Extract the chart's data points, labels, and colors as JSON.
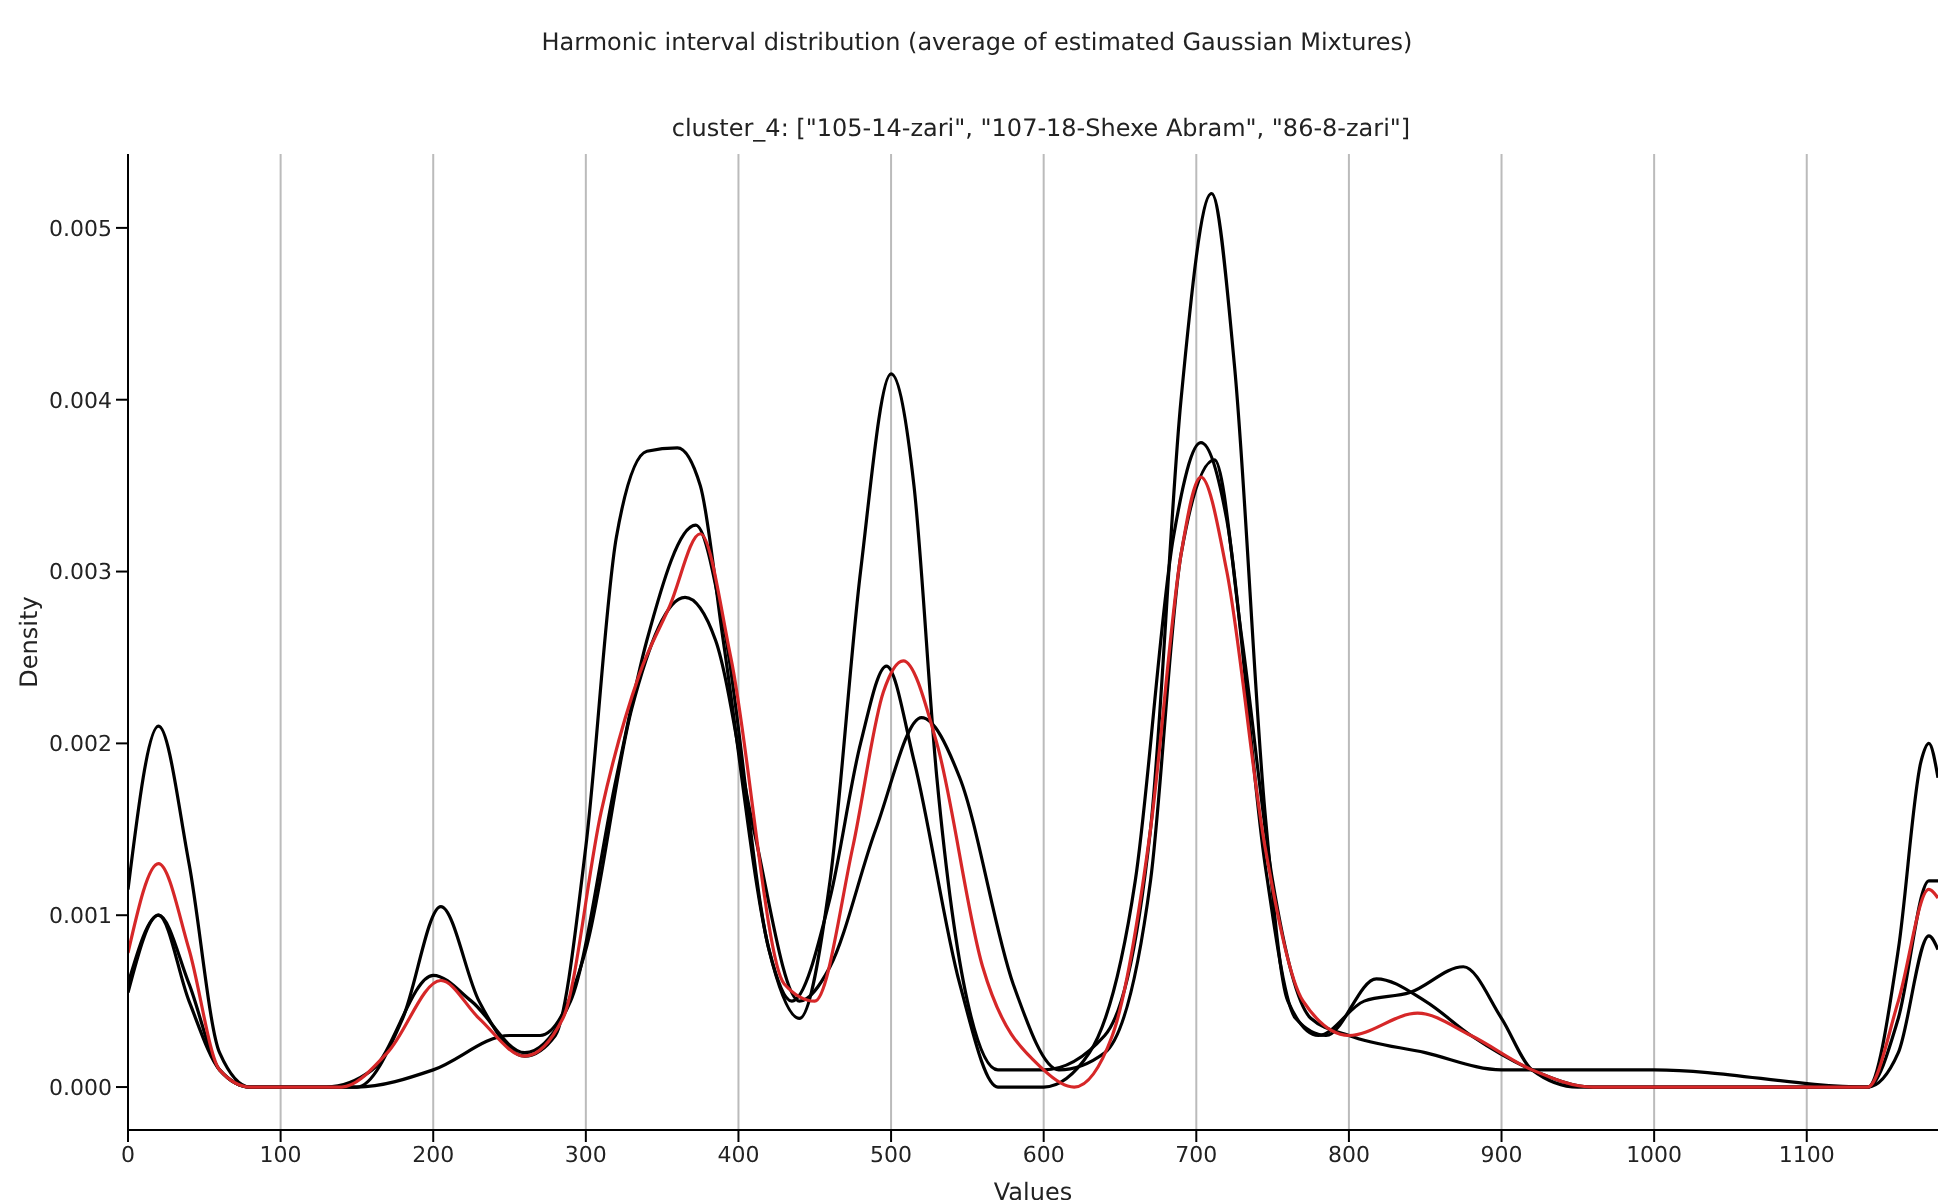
{
  "chart_data": {
    "type": "line",
    "title": "Harmonic interval distribution (average of estimated Gaussian Mixtures)",
    "subtitle": "cluster_4: [\"105-14-zari\", \"107-18-Shexe Abram\", \"86-8-zari\"]",
    "xlabel": "Values",
    "ylabel": "Density",
    "xlim": [
      0,
      1186
    ],
    "xticks": [
      0,
      100,
      200,
      300,
      400,
      500,
      600,
      700,
      800,
      900,
      1000,
      1100
    ],
    "ylim": [
      -0.00025,
      0.00543
    ],
    "yticks": [
      {
        "value": 0,
        "label": "0.000"
      },
      {
        "value": 0.001,
        "label": "0.001"
      },
      {
        "value": 0.002,
        "label": "0.002"
      },
      {
        "value": 0.003,
        "label": "0.003"
      },
      {
        "value": 0.004,
        "label": "0.004"
      },
      {
        "value": 0.005,
        "label": "0.005"
      }
    ],
    "grid": "x",
    "marker": "none",
    "line_style": "solid",
    "series": [
      {
        "color": "#000000",
        "x": [
          0,
          20,
          40,
          60,
          80,
          150,
          180,
          205,
          230,
          260,
          280,
          300,
          320,
          340,
          360,
          375,
          390,
          420,
          440,
          460,
          480,
          500,
          515,
          530,
          550,
          570,
          600,
          640,
          670,
          690,
          710,
          725,
          745,
          760,
          780,
          810,
          840,
          875,
          900,
          920,
          950,
          1000,
          1100,
          1140,
          1160,
          1175,
          1180,
          1186
        ],
        "values": [
          0.00115,
          0.0021,
          0.0013,
          0.0002,
          0.0,
          0.0,
          0.0004,
          0.00105,
          0.0005,
          0.00018,
          0.0003,
          0.0014,
          0.0032,
          0.0037,
          0.00372,
          0.0035,
          0.0026,
          0.0008,
          0.0004,
          0.0012,
          0.003,
          0.00415,
          0.0035,
          0.0018,
          0.0005,
          0.0001,
          0.0001,
          0.0003,
          0.0015,
          0.004,
          0.0052,
          0.0042,
          0.0016,
          0.0005,
          0.0003,
          0.0005,
          0.00055,
          0.0007,
          0.0004,
          0.0001,
          0.0,
          0.0,
          0.0,
          0.0,
          0.0008,
          0.0019,
          0.002,
          0.0018
        ]
      },
      {
        "color": "#000000",
        "x": [
          0,
          20,
          40,
          60,
          80,
          150,
          200,
          250,
          270,
          300,
          330,
          365,
          385,
          410,
          440,
          460,
          490,
          520,
          545,
          580,
          610,
          640,
          670,
          690,
          712,
          730,
          750,
          775,
          800,
          850,
          900,
          1000,
          1140,
          1160,
          1180,
          1186
        ],
        "values": [
          0.00055,
          0.001,
          0.0006,
          0.0001,
          0.0,
          0.0,
          0.0001,
          0.0003,
          0.0003,
          0.0008,
          0.0022,
          0.00285,
          0.0026,
          0.0015,
          0.0005,
          0.0007,
          0.0015,
          0.00215,
          0.0018,
          0.0006,
          0.0001,
          0.0002,
          0.0012,
          0.0031,
          0.00365,
          0.0026,
          0.0012,
          0.0004,
          0.0003,
          0.0002,
          0.0001,
          0.0001,
          0.0,
          0.0002,
          0.00088,
          0.0008
        ]
      },
      {
        "color": "#000000",
        "x": [
          0,
          20,
          40,
          60,
          80,
          130,
          160,
          200,
          225,
          260,
          290,
          320,
          340,
          372,
          390,
          420,
          435,
          460,
          480,
          497,
          515,
          545,
          570,
          600,
          630,
          660,
          685,
          703,
          720,
          745,
          765,
          785,
          818,
          850,
          880,
          920,
          960,
          1140,
          1160,
          1180,
          1186
        ],
        "values": [
          0.0006,
          0.001,
          0.0005,
          0.0001,
          0.0,
          0.0,
          0.0001,
          0.00065,
          0.0005,
          0.0002,
          0.0005,
          0.0018,
          0.0026,
          0.00327,
          0.0027,
          0.0008,
          0.0005,
          0.0011,
          0.002,
          0.00245,
          0.0019,
          0.0006,
          0.0,
          0.0,
          0.0002,
          0.0012,
          0.0032,
          0.00375,
          0.0033,
          0.0013,
          0.0004,
          0.0003,
          0.00063,
          0.0005,
          0.0003,
          0.0001,
          0.0,
          0.0,
          0.0004,
          0.0012,
          0.0012
        ]
      },
      {
        "color": "#d62728",
        "x": [
          0,
          20,
          40,
          60,
          80,
          140,
          170,
          205,
          230,
          260,
          285,
          310,
          335,
          355,
          375,
          395,
          430,
          450,
          475,
          495,
          508,
          530,
          560,
          600,
          620,
          645,
          670,
          690,
          703,
          720,
          745,
          770,
          800,
          845,
          880,
          920,
          960,
          1140,
          1160,
          1180,
          1186
        ],
        "values": [
          0.00078,
          0.0013,
          0.0008,
          0.0001,
          0.0,
          0.0,
          0.0002,
          0.00062,
          0.0004,
          0.00018,
          0.0004,
          0.0016,
          0.0024,
          0.0028,
          0.00322,
          0.0025,
          0.0006,
          0.0005,
          0.0014,
          0.0023,
          0.00248,
          0.002,
          0.0007,
          0.0001,
          0.0,
          0.0003,
          0.0015,
          0.0031,
          0.00355,
          0.003,
          0.0014,
          0.0005,
          0.0003,
          0.00043,
          0.0003,
          0.0001,
          0.0,
          0.0,
          0.0005,
          0.00115,
          0.0011
        ]
      }
    ]
  }
}
